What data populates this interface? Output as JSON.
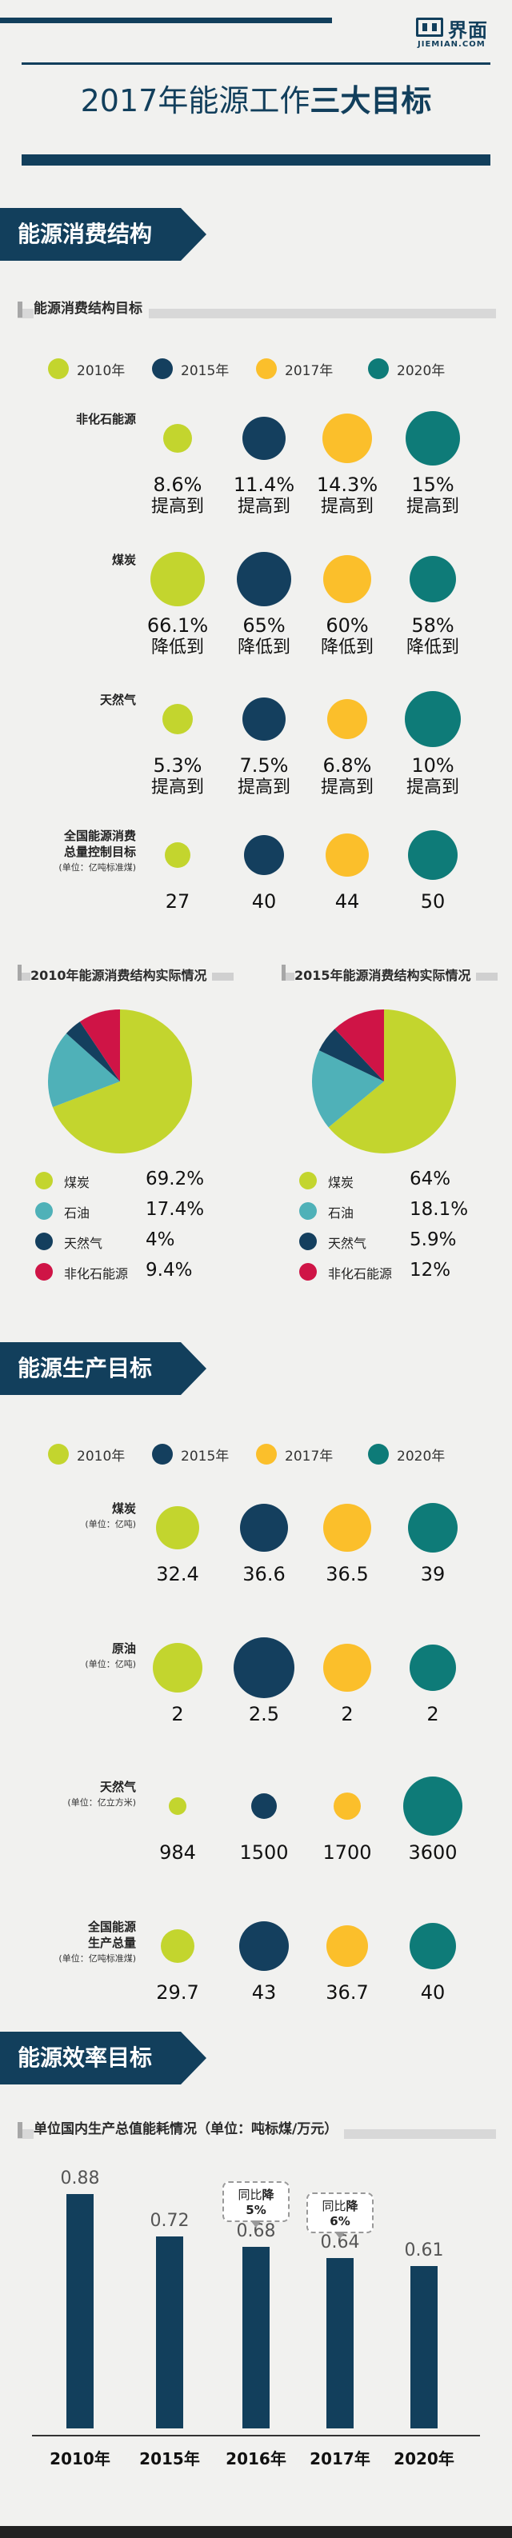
{
  "colors": {
    "y2010": "#c3d52e",
    "y2015": "#143f5e",
    "y2017": "#fbbf2b",
    "y2020": "#0e7b78",
    "oil": "#4fb1b8",
    "nonfossil": "#cf1446",
    "navy": "#123f5c"
  },
  "logo": {
    "name": "界面",
    "sub": "JIEMIAN.COM"
  },
  "title": {
    "normal": "2017年能源工作",
    "bold": "三大目标"
  },
  "legend": [
    "2010年",
    "2015年",
    "2017年",
    "2020年"
  ],
  "section1": {
    "ribbon": "能源消费结构",
    "subhead": "能源消费结构目标",
    "rows": [
      {
        "label": "非化石能源",
        "unit": "",
        "values": [
          "8.6%",
          "11.4%",
          "14.3%",
          "15%"
        ],
        "notes": [
          "提高到",
          "提高到",
          "提高到",
          "提高到"
        ],
        "sizes": [
          18,
          27,
          31,
          34
        ]
      },
      {
        "label": "煤炭",
        "unit": "",
        "values": [
          "66.1%",
          "65%",
          "60%",
          "58%"
        ],
        "notes": [
          "降低到",
          "降低到",
          "降低到",
          "降低到"
        ],
        "sizes": [
          34,
          34,
          30,
          29
        ]
      },
      {
        "label": "天然气",
        "unit": "",
        "values": [
          "5.3%",
          "7.5%",
          "6.8%",
          "10%"
        ],
        "notes": [
          "提高到",
          "提高到",
          "提高到",
          "提高到"
        ],
        "sizes": [
          19,
          27,
          25,
          35
        ]
      },
      {
        "label": "全国能源消费总量控制目标",
        "label2": "全国能源消费",
        "label3": "总量控制目标",
        "unit": "(单位：亿吨标准煤)",
        "values": [
          "27",
          "40",
          "44",
          "50"
        ],
        "notes": [
          "",
          "",
          "",
          ""
        ],
        "sizes": [
          16,
          25,
          27,
          31
        ]
      }
    ]
  },
  "pies": [
    {
      "title": "2010年能源消费结构实际情况",
      "items": [
        {
          "name": "煤炭",
          "value": "69.2%",
          "pct": 69.2
        },
        {
          "name": "石油",
          "value": "17.4%",
          "pct": 17.4
        },
        {
          "name": "天然气",
          "value": "4%",
          "pct": 4
        },
        {
          "name": "非化石能源",
          "value": "9.4%",
          "pct": 9.4
        }
      ]
    },
    {
      "title": "2015年能源消费结构实际情况",
      "items": [
        {
          "name": "煤炭",
          "value": "64%",
          "pct": 64
        },
        {
          "name": "石油",
          "value": "18.1%",
          "pct": 18.1
        },
        {
          "name": "天然气",
          "value": "5.9%",
          "pct": 5.9
        },
        {
          "name": "非化石能源",
          "value": "12%",
          "pct": 12
        }
      ]
    }
  ],
  "section2": {
    "ribbon": "能源生产目标",
    "rows": [
      {
        "label": "煤炭",
        "unit": "(单位：亿吨)",
        "values": [
          "32.4",
          "36.6",
          "36.5",
          "39"
        ],
        "sizes": [
          27,
          30,
          30,
          31
        ]
      },
      {
        "label": "原油",
        "unit": "(单位：亿吨)",
        "values": [
          "2",
          "2.5",
          "2",
          "2"
        ],
        "sizes": [
          31,
          38,
          30,
          29
        ]
      },
      {
        "label": "天然气",
        "unit": "(单位：亿立方米)",
        "values": [
          "984",
          "1500",
          "1700",
          "3600"
        ],
        "sizes": [
          11,
          16,
          17,
          37
        ]
      },
      {
        "label": "全国能源生产总量",
        "label2": "全国能源",
        "label3": "生产总量",
        "unit": "(单位：亿吨标准煤)",
        "values": [
          "29.7",
          "43",
          "36.7",
          "40"
        ],
        "sizes": [
          21,
          31,
          26,
          29
        ]
      }
    ]
  },
  "section3": {
    "ribbon": "能源效率目标",
    "subhead": "单位国内生产总值能耗情况（单位：吨标煤/万元）"
  },
  "chart_data": {
    "type": "bar",
    "categories": [
      "2010年",
      "2015年",
      "2016年",
      "2017年",
      "2020年"
    ],
    "values": [
      0.88,
      0.72,
      0.68,
      0.64,
      0.61
    ],
    "labels": [
      "0.88",
      "0.72",
      "0.68",
      "0.64",
      "0.61"
    ],
    "ylim": [
      0,
      0.9
    ],
    "annotations": [
      {
        "category": "2016年",
        "text_prefix": "同比",
        "text_bold": "降5%"
      },
      {
        "category": "2017年",
        "text_prefix": "同比",
        "text_bold": "降6%"
      }
    ]
  }
}
